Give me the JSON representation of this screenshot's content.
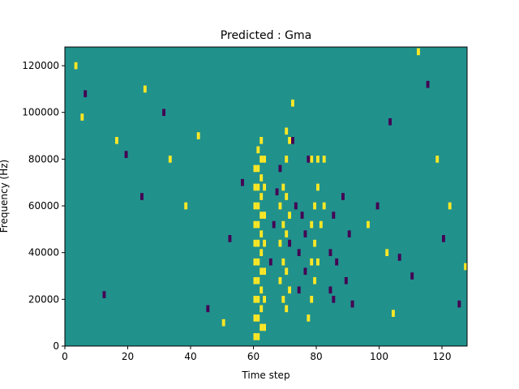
{
  "chart_data": {
    "type": "heatmap",
    "title": "Predicted : Gma",
    "xlabel": "Time step",
    "ylabel": "Frequency (Hz)",
    "xlim": [
      0,
      128
    ],
    "ylim": [
      0,
      128000
    ],
    "x_ticks": [
      0,
      20,
      40,
      60,
      80,
      100,
      120
    ],
    "x_tick_labels": [
      "0",
      "20",
      "40",
      "60",
      "80",
      "100",
      "120"
    ],
    "y_ticks": [
      0,
      20000,
      40000,
      60000,
      80000,
      100000,
      120000
    ],
    "y_tick_labels": [
      "0",
      "20000",
      "40000",
      "60000",
      "80000",
      "100000",
      "120000"
    ],
    "grid": false,
    "legend": "none",
    "colors": {
      "background": "#21918c",
      "high": "#fde725",
      "low": "#440154"
    },
    "levels": [
      "0.5 (background)",
      "1 (high)",
      "0 (low)"
    ],
    "cells_note": "binary-like on/off mask over a 128 time-step x 128 frequency-bin grid",
    "high_cells": [
      [
        60,
        4000
      ],
      [
        60,
        12000
      ],
      [
        60,
        20000
      ],
      [
        60,
        28000
      ],
      [
        60,
        36000
      ],
      [
        60,
        44000
      ],
      [
        60,
        52000
      ],
      [
        60,
        60000
      ],
      [
        60,
        68000
      ],
      [
        60,
        76000
      ],
      [
        61,
        4000
      ],
      [
        61,
        12000
      ],
      [
        61,
        20000
      ],
      [
        61,
        28000
      ],
      [
        61,
        36000
      ],
      [
        61,
        44000
      ],
      [
        61,
        52000
      ],
      [
        61,
        60000
      ],
      [
        61,
        68000
      ],
      [
        61,
        76000
      ],
      [
        61,
        84000
      ],
      [
        62,
        8000
      ],
      [
        62,
        16000
      ],
      [
        62,
        24000
      ],
      [
        62,
        32000
      ],
      [
        62,
        40000
      ],
      [
        62,
        48000
      ],
      [
        62,
        56000
      ],
      [
        62,
        64000
      ],
      [
        62,
        72000
      ],
      [
        62,
        80000
      ],
      [
        62,
        88000
      ],
      [
        63,
        8000
      ],
      [
        63,
        20000
      ],
      [
        63,
        32000
      ],
      [
        63,
        44000
      ],
      [
        63,
        56000
      ],
      [
        63,
        68000
      ],
      [
        63,
        80000
      ],
      [
        68,
        28000
      ],
      [
        68,
        44000
      ],
      [
        68,
        60000
      ],
      [
        69,
        20000
      ],
      [
        69,
        36000
      ],
      [
        69,
        52000
      ],
      [
        69,
        68000
      ],
      [
        70,
        16000
      ],
      [
        70,
        32000
      ],
      [
        70,
        48000
      ],
      [
        70,
        64000
      ],
      [
        70,
        80000
      ],
      [
        70,
        92000
      ],
      [
        71,
        24000
      ],
      [
        71,
        56000
      ],
      [
        71,
        88000
      ],
      [
        72,
        104000
      ],
      [
        77,
        12000
      ],
      [
        78,
        20000
      ],
      [
        78,
        36000
      ],
      [
        78,
        52000
      ],
      [
        78,
        80000
      ],
      [
        79,
        28000
      ],
      [
        79,
        44000
      ],
      [
        79,
        60000
      ],
      [
        80,
        36000
      ],
      [
        80,
        68000
      ],
      [
        80,
        80000
      ],
      [
        81,
        52000
      ],
      [
        82,
        60000
      ],
      [
        82,
        80000
      ],
      [
        3,
        120000
      ],
      [
        5,
        98000
      ],
      [
        16,
        88000
      ],
      [
        25,
        110000
      ],
      [
        33,
        80000
      ],
      [
        38,
        60000
      ],
      [
        42,
        90000
      ],
      [
        50,
        10000
      ],
      [
        96,
        52000
      ],
      [
        102,
        40000
      ],
      [
        104,
        14000
      ],
      [
        112,
        126000
      ],
      [
        118,
        80000
      ],
      [
        122,
        60000
      ],
      [
        127,
        34000
      ]
    ],
    "low_cells": [
      [
        65,
        36000
      ],
      [
        66,
        52000
      ],
      [
        67,
        66000
      ],
      [
        68,
        76000
      ],
      [
        71,
        44000
      ],
      [
        72,
        88000
      ],
      [
        73,
        60000
      ],
      [
        74,
        40000
      ],
      [
        74,
        24000
      ],
      [
        75,
        56000
      ],
      [
        76,
        32000
      ],
      [
        76,
        48000
      ],
      [
        77,
        80000
      ],
      [
        84,
        40000
      ],
      [
        84,
        24000
      ],
      [
        85,
        20000
      ],
      [
        85,
        56000
      ],
      [
        86,
        36000
      ],
      [
        88,
        64000
      ],
      [
        89,
        28000
      ],
      [
        90,
        48000
      ],
      [
        91,
        18000
      ],
      [
        6,
        108000
      ],
      [
        12,
        22000
      ],
      [
        19,
        82000
      ],
      [
        24,
        64000
      ],
      [
        31,
        100000
      ],
      [
        45,
        16000
      ],
      [
        52,
        46000
      ],
      [
        56,
        70000
      ],
      [
        99,
        60000
      ],
      [
        103,
        96000
      ],
      [
        106,
        38000
      ],
      [
        110,
        30000
      ],
      [
        115,
        112000
      ],
      [
        120,
        46000
      ],
      [
        125,
        18000
      ]
    ]
  }
}
